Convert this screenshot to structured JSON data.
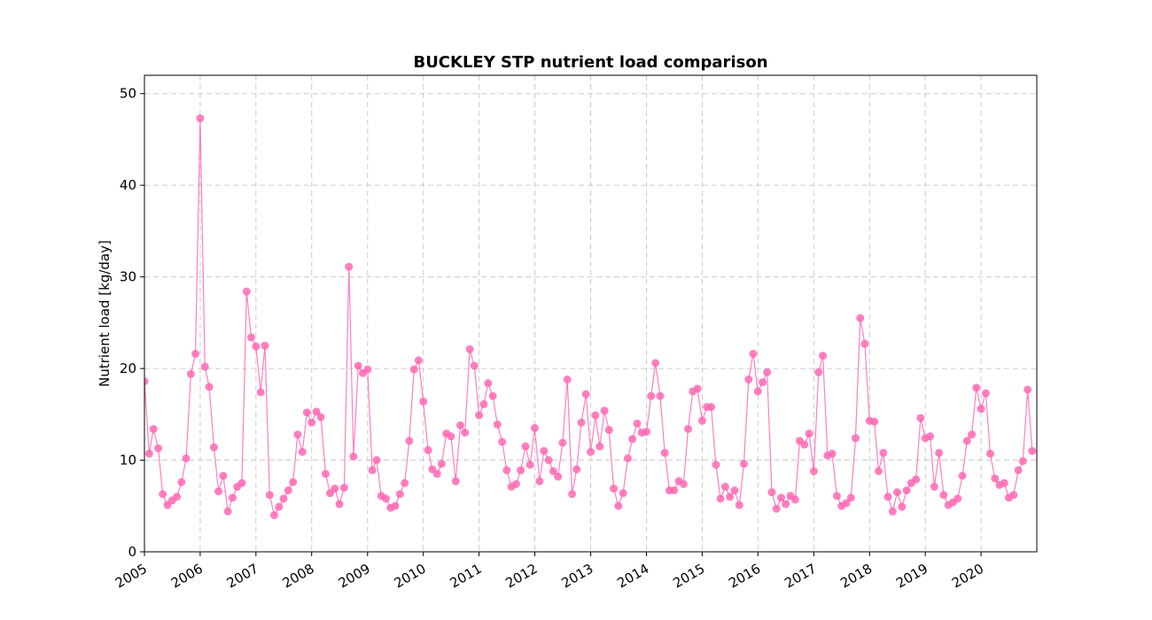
{
  "chart_data": {
    "type": "line",
    "title": "BUCKLEY STP nutrient load comparison",
    "xlabel": "",
    "ylabel": "Nutrient load [kg/day]",
    "x_start": "2005-01",
    "x_frequency": "monthly",
    "xlim": [
      "2005-01-01",
      "2020-12-31"
    ],
    "ylim": [
      0,
      52
    ],
    "y_ticks": [
      "0",
      "10",
      "20",
      "30",
      "40",
      "50"
    ],
    "x_ticks": [
      "2005",
      "2006",
      "2007",
      "2008",
      "2009",
      "2010",
      "2011",
      "2012",
      "2013",
      "2014",
      "2015",
      "2016",
      "2017",
      "2018",
      "2019",
      "2020"
    ],
    "grid": true,
    "grid_style": "dashed",
    "series": [
      {
        "color": "#ff69b4",
        "values": [
          18.6,
          10.7,
          13.4,
          11.3,
          6.3,
          5.1,
          5.6,
          6.0,
          7.6,
          10.2,
          19.4,
          21.6,
          47.3,
          20.2,
          18.0,
          11.4,
          6.6,
          8.3,
          4.4,
          5.9,
          7.1,
          7.5,
          28.4,
          23.4,
          22.4,
          17.4,
          22.5,
          6.2,
          4.0,
          4.9,
          5.8,
          6.7,
          7.6,
          12.8,
          10.9,
          15.2,
          14.1,
          15.3,
          14.7,
          8.5,
          6.4,
          6.9,
          5.2,
          7.0,
          31.1,
          10.4,
          20.3,
          19.5,
          19.9,
          8.9,
          10.0,
          6.1,
          5.8,
          4.8,
          5.0,
          6.3,
          7.5,
          12.1,
          19.9,
          20.9,
          16.4,
          11.1,
          9.0,
          8.5,
          9.6,
          12.9,
          12.6,
          7.7,
          13.8,
          13.0,
          22.1,
          20.3,
          14.9,
          16.1,
          18.4,
          17.0,
          13.9,
          12.0,
          8.9,
          7.1,
          7.4,
          8.9,
          11.5,
          9.5,
          13.5,
          7.7,
          11.0,
          10.0,
          8.8,
          8.2,
          11.9,
          18.8,
          6.3,
          9.0,
          14.1,
          17.2,
          10.9,
          14.9,
          11.5,
          15.4,
          13.3,
          6.9,
          5.0,
          6.4,
          10.2,
          12.3,
          14.0,
          13.0,
          13.1,
          17.0,
          20.6,
          17.0,
          10.8,
          6.7,
          6.7,
          7.7,
          7.4,
          13.4,
          17.5,
          17.8,
          14.3,
          15.8,
          15.8,
          9.5,
          5.8,
          7.1,
          6.0,
          6.7,
          5.1,
          9.6,
          18.8,
          21.6,
          17.5,
          18.5,
          19.6,
          6.5,
          4.7,
          5.9,
          5.2,
          6.1,
          5.7,
          12.1,
          11.7,
          12.9,
          8.8,
          19.6,
          21.4,
          10.5,
          10.7,
          6.1,
          5.0,
          5.3,
          5.9,
          12.4,
          25.5,
          22.7,
          14.3,
          14.2,
          8.8,
          10.8,
          6.0,
          4.4,
          6.5,
          4.9,
          6.7,
          7.5,
          7.9,
          14.6,
          12.4,
          12.6,
          7.1,
          10.8,
          6.2,
          5.1,
          5.4,
          5.8,
          8.3,
          12.1,
          12.8,
          17.9,
          15.6,
          17.3,
          10.7,
          8.0,
          7.3,
          7.5,
          5.9,
          6.2,
          8.9,
          9.9,
          17.7,
          11.0
        ]
      }
    ]
  }
}
